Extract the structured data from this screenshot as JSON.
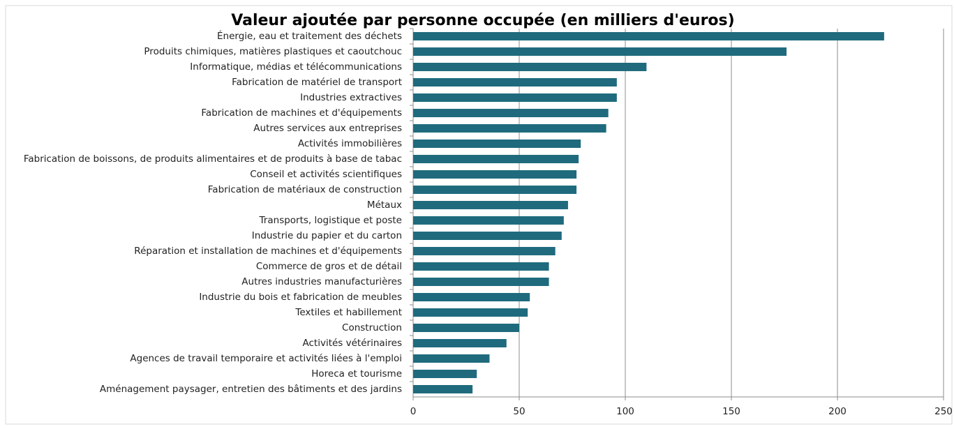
{
  "chart_data": {
    "type": "bar",
    "orientation": "horizontal",
    "title": "Valeur ajoutée par personne occupée (en milliers d'euros)",
    "categories": [
      "Énergie, eau et traitement des déchets",
      "Produits chimiques, matières plastiques et caoutchouc",
      "Informatique, médias et télécommunications",
      "Fabrication de matériel de transport",
      "Industries extractives",
      "Fabrication de machines et d'équipements",
      "Autres services aux entreprises",
      "Activités immobilières",
      "Fabrication de boissons, de produits alimentaires et de produits à base de tabac",
      "Conseil et activités scientifiques",
      "Fabrication de matériaux de construction",
      "Métaux",
      "Transports, logistique et poste",
      "Industrie du papier et du carton",
      "Réparation et installation de machines et d'équipements",
      "Commerce de gros et de détail",
      "Autres industries manufacturières",
      "Industrie du bois et fabrication de meubles",
      "Textiles et habillement",
      "Construction",
      "Activités vétérinaires",
      "Agences de travail temporaire et activités liées à l'emploi",
      "Horeca et tourisme",
      "Aménagement paysager, entretien des bâtiments et des jardins"
    ],
    "values": [
      222,
      176,
      110,
      96,
      96,
      92,
      91,
      79,
      78,
      77,
      77,
      73,
      71,
      70,
      67,
      64,
      64,
      55,
      54,
      50,
      44,
      36,
      30,
      28
    ],
    "color": "#1f6b7d",
    "xlim": [
      0,
      250
    ],
    "xticks": [
      0,
      50,
      100,
      150,
      200,
      250
    ],
    "grid": true
  }
}
